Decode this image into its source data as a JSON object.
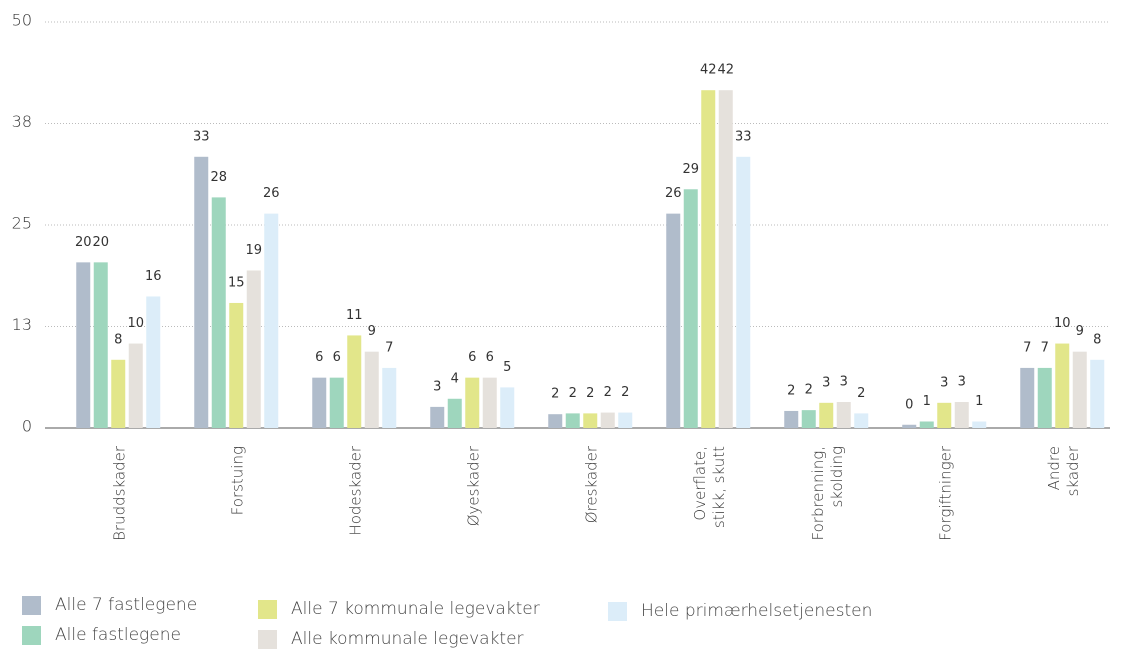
{
  "chart_data": {
    "type": "bar",
    "categories": [
      "Bruddskader",
      "Forstuing",
      "Hodeskader",
      "Øyeskader",
      "Øreskader",
      "Overflate,\nstikk, skutt",
      "Forbrenning,\nskolding",
      "Forgiftninger",
      "Andre skader"
    ],
    "series": [
      {
        "name": "Alle 7 fastlegene",
        "color": "#b0bccb",
        "values": [
          20.4,
          33.4,
          6.2,
          2.6,
          1.7,
          26.4,
          2.1,
          0.4,
          7.4
        ],
        "value_labels": [
          "20",
          "33",
          "6",
          "3",
          "2",
          "26",
          "2",
          "0",
          "7"
        ]
      },
      {
        "name": "Alle fastlegene",
        "color": "#9ed6bd",
        "values": [
          20.4,
          28.4,
          6.2,
          3.6,
          1.8,
          29.4,
          2.2,
          0.8,
          7.4
        ],
        "value_labels": [
          "20",
          "28",
          "6",
          "4",
          "2",
          "29",
          "2",
          "1",
          "7"
        ]
      },
      {
        "name": "Alle 7 kommunale legevakter",
        "color": "#e2e68a",
        "values": [
          8.4,
          15.4,
          11.4,
          6.2,
          1.8,
          41.6,
          3.1,
          3.1,
          10.4
        ],
        "value_labels": [
          "8",
          "15",
          "11",
          "6",
          "2",
          "42",
          "3",
          "3",
          "10"
        ]
      },
      {
        "name": "Alle kommunale legevakter",
        "color": "#e5e1dc",
        "values": [
          10.4,
          19.4,
          9.4,
          6.2,
          1.9,
          41.6,
          3.2,
          3.2,
          9.4
        ],
        "value_labels": [
          "10",
          "19",
          "9",
          "6",
          "2",
          "42",
          "3",
          "3",
          "9"
        ]
      },
      {
        "name": "Hele primærhelsetjenesten",
        "color": "#dcedf9",
        "values": [
          16.2,
          26.4,
          7.4,
          5.0,
          1.9,
          33.4,
          1.8,
          0.8,
          8.4
        ],
        "value_labels": [
          "16",
          "26",
          "7",
          "5",
          "2",
          "33",
          "2",
          "1",
          "8"
        ]
      }
    ],
    "ylim": [
      0,
      50
    ],
    "yticks": [
      0,
      {
        "value": 12.5,
        "label": "13"
      },
      25,
      {
        "value": 37.5,
        "label": "38"
      },
      50
    ],
    "grid": true
  }
}
